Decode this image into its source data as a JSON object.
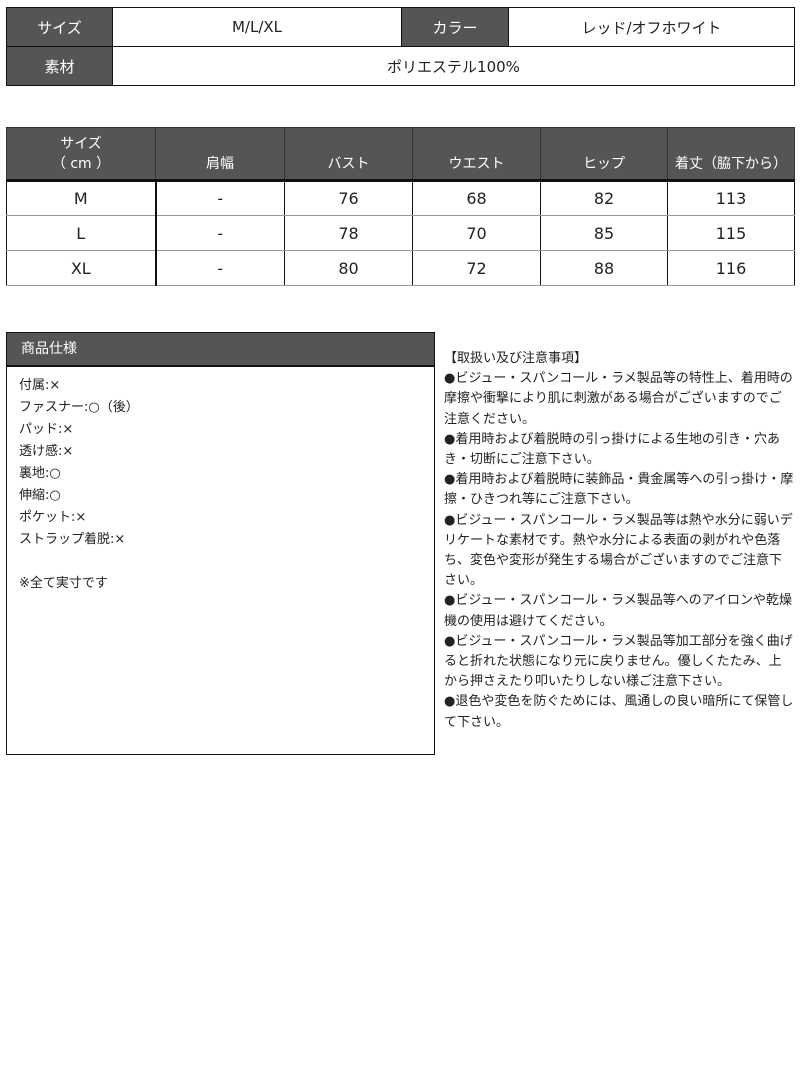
{
  "info": {
    "size_label": "サイズ",
    "size_value": "M/L/XL",
    "color_label": "カラー",
    "color_value": "レッド/オフホワイト",
    "material_label": "素材",
    "material_value": "ポリエステル100%"
  },
  "size_table": {
    "headers": [
      "サイズ\n（ cm ）",
      "肩幅",
      "バスト",
      "ウエスト",
      "ヒップ",
      "着丈（脇下から）"
    ],
    "rows": [
      [
        "M",
        "-",
        "76",
        "68",
        "82",
        "113"
      ],
      [
        "L",
        "-",
        "78",
        "70",
        "85",
        "115"
      ],
      [
        "XL",
        "-",
        "80",
        "72",
        "88",
        "116"
      ]
    ]
  },
  "spec": {
    "title": "商品仕様",
    "items": [
      "付属:×",
      "ファスナー:○（後）",
      "パッド:×",
      "透け感:×",
      "裏地:○",
      "伸縮:○",
      "ポケット:×",
      "ストラップ着脱:×"
    ],
    "note": "※全て実寸です"
  },
  "notes": {
    "title": "【取扱い及び注意事項】",
    "items": [
      "●ビジュー・スパンコール・ラメ製品等の特性上、着用時の摩擦や衝撃により肌に刺激がある場合がございますのでご注意ください。",
      "●着用時および着脱時の引っ掛けによる生地の引き・穴あき・切断にご注意下さい。",
      "●着用時および着脱時に装飾品・貴金属等への引っ掛け・摩擦・ひきつれ等にご注意下さい。",
      "●ビジュー・スパンコール・ラメ製品等は熱や水分に弱いデリケートな素材です。熱や水分による表面の剥がれや色落ち、変色や変形が発生する場合がございますのでご注意下さい。",
      "●ビジュー・スパンコール・ラメ製品等へのアイロンや乾燥機の使用は避けてください。",
      "●ビジュー・スパンコール・ラメ製品等加工部分を強く曲げると折れた状態になり元に戻りません。優しくたたみ、上から押さえたり叩いたりしない様ご注意下さい。",
      "●退色や変色を防ぐためには、風通しの良い暗所にて保管して下さい。"
    ]
  }
}
